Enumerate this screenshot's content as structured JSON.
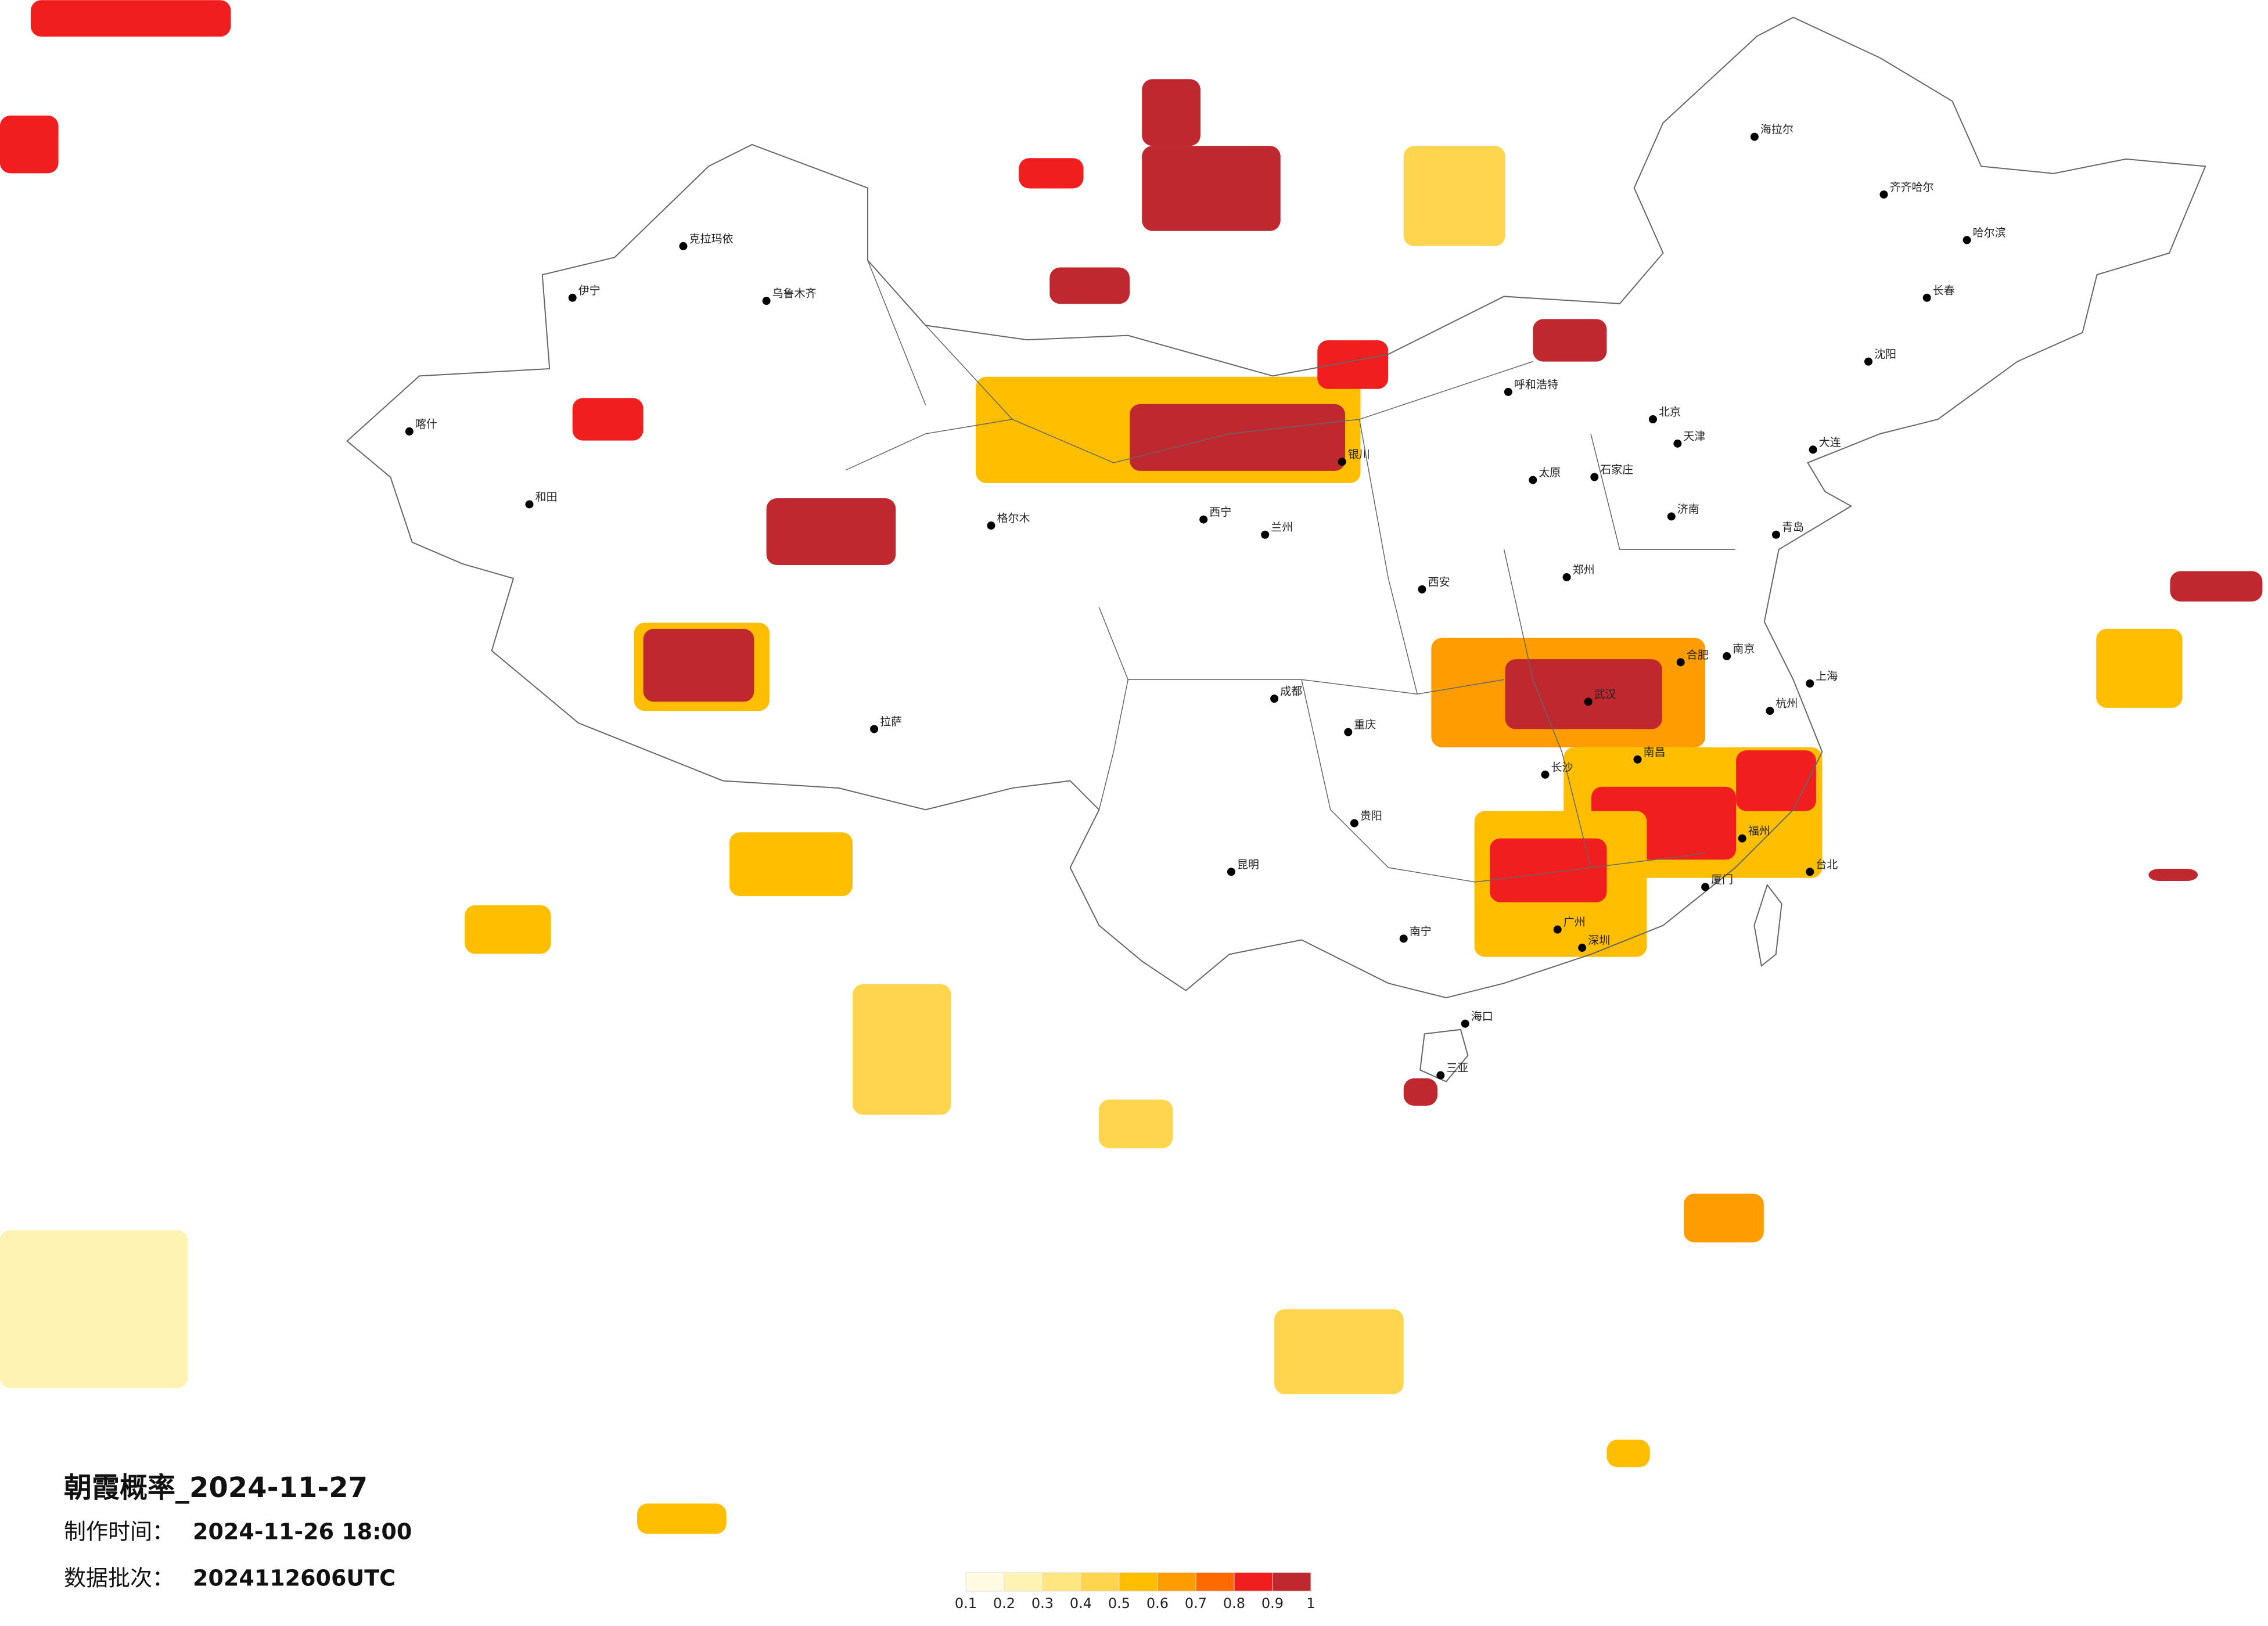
{
  "title": "朝霞概率_2024-11-27",
  "made_label": "制作时间：",
  "made_time": "2024-11-26 18:00",
  "batch_label": "数据批次：",
  "batch": "2024112606UTC",
  "legend": {
    "ticks": [
      0.1,
      0.2,
      0.3,
      0.4,
      0.5,
      0.6,
      0.7,
      0.8,
      0.9,
      1
    ],
    "colors": [
      "#fffbe3",
      "#fff3b3",
      "#ffe680",
      "#ffd54f",
      "#ffbf00",
      "#ff9c00",
      "#ff6a00",
      "#f01e1e",
      "#c0282f"
    ]
  },
  "patches": [
    {
      "lon": [
        94.4,
        106.9
      ],
      "lat": [
        41.3,
        37.8
      ],
      "value": 0.55
    },
    {
      "lon": [
        99.4,
        106.4
      ],
      "lat": [
        40.4,
        38.2
      ],
      "value": 0.95
    },
    {
      "lon": [
        99.8,
        104.3
      ],
      "lat": [
        48.9,
        46.1
      ],
      "value": 0.95
    },
    {
      "lon": [
        99.8,
        101.7
      ],
      "lat": [
        51.1,
        48.9
      ],
      "value": 0.9
    },
    {
      "lon": [
        83.3,
        87.7
      ],
      "lat": [
        33.2,
        30.3
      ],
      "value": 0.55
    },
    {
      "lon": [
        83.6,
        87.2
      ],
      "lat": [
        33.0,
        30.6
      ],
      "value": 0.95
    },
    {
      "lon": [
        87.6,
        91.8
      ],
      "lat": [
        37.3,
        35.1
      ],
      "value": 0.9
    },
    {
      "lon": [
        81.3,
        83.6
      ],
      "lat": [
        40.6,
        39.2
      ],
      "value": 0.8
    },
    {
      "lon": [
        109.2,
        118.1
      ],
      "lat": [
        32.7,
        29.1
      ],
      "value": 0.6
    },
    {
      "lon": [
        111.6,
        116.7
      ],
      "lat": [
        32.0,
        29.7
      ],
      "value": 0.95
    },
    {
      "lon": [
        113.5,
        121.9
      ],
      "lat": [
        29.1,
        24.8
      ],
      "value": 0.55
    },
    {
      "lon": [
        114.4,
        119.1
      ],
      "lat": [
        27.8,
        25.4
      ],
      "value": 0.85
    },
    {
      "lon": [
        110.6,
        116.2
      ],
      "lat": [
        27.0,
        22.2
      ],
      "value": 0.5
    },
    {
      "lon": [
        111.1,
        114.9
      ],
      "lat": [
        26.1,
        24.0
      ],
      "value": 0.85
    },
    {
      "lon": [
        119.1,
        121.7
      ],
      "lat": [
        29.0,
        27.0
      ],
      "value": 0.85
    },
    {
      "lon": [
        112.5,
        114.9
      ],
      "lat": [
        43.2,
        41.8
      ],
      "value": 0.9
    },
    {
      "lon": [
        96.8,
        99.4
      ],
      "lat": [
        44.9,
        43.7
      ],
      "value": 0.9
    },
    {
      "lon": [
        95.8,
        97.9
      ],
      "lat": [
        48.5,
        47.5
      ],
      "value": 0.8
    },
    {
      "lon": [
        105.5,
        107.8
      ],
      "lat": [
        42.5,
        40.9
      ],
      "value": 0.85
    },
    {
      "lon": [
        63.7,
        70.2
      ],
      "lat": [
        53.7,
        52.5
      ],
      "value": 0.8
    },
    {
      "lon": [
        62.7,
        64.6
      ],
      "lat": [
        49.9,
        48.0
      ],
      "value": 0.85
    },
    {
      "lon": [
        130.8,
        133.6
      ],
      "lat": [
        33.0,
        30.4
      ],
      "value": 0.5
    },
    {
      "lon": [
        133.2,
        136.2
      ],
      "lat": [
        34.9,
        33.9
      ],
      "value": 0.9
    },
    {
      "lon": [
        108.3,
        109.4
      ],
      "lat": [
        18.2,
        17.3
      ],
      "value": 0.9
    },
    {
      "lon": [
        86.4,
        90.4
      ],
      "lat": [
        26.3,
        24.2
      ],
      "value": 0.55
    },
    {
      "lon": [
        117.4,
        120.0
      ],
      "lat": [
        14.4,
        12.8
      ],
      "value": 0.6
    },
    {
      "lon": [
        90.4,
        93.6
      ],
      "lat": [
        21.3,
        17.0
      ],
      "value": 0.4
    },
    {
      "lon": [
        108.3,
        111.6
      ],
      "lat": [
        48.9,
        45.6
      ],
      "value": 0.4
    },
    {
      "lon": [
        98.4,
        100.8
      ],
      "lat": [
        17.5,
        15.9
      ],
      "value": 0.45
    },
    {
      "lon": [
        132.5,
        134.1
      ],
      "lat": [
        25.1,
        24.7
      ],
      "value": 0.9
    },
    {
      "lon": [
        62.7,
        68.8
      ],
      "lat": [
        13.2,
        8.0
      ],
      "value": 0.2
    },
    {
      "lon": [
        104.1,
        108.3
      ],
      "lat": [
        10.6,
        7.8
      ],
      "value": 0.4
    },
    {
      "lon": [
        77.8,
        80.6
      ],
      "lat": [
        23.9,
        22.3
      ],
      "value": 0.5
    },
    {
      "lon": [
        114.9,
        116.3
      ],
      "lat": [
        6.3,
        5.4
      ],
      "value": 0.5
    },
    {
      "lon": [
        83.4,
        86.3
      ],
      "lat": [
        4.2,
        3.2
      ],
      "value": 0.5
    }
  ],
  "cities": [
    {
      "name": "北京",
      "lon": 116.4,
      "lat": 39.9
    },
    {
      "name": "天津",
      "lon": 117.2,
      "lat": 39.1
    },
    {
      "name": "上海",
      "lon": 121.5,
      "lat": 31.2
    },
    {
      "name": "重庆",
      "lon": 106.5,
      "lat": 29.6
    },
    {
      "name": "哈尔滨",
      "lon": 126.6,
      "lat": 45.8
    },
    {
      "name": "长春",
      "lon": 125.3,
      "lat": 43.9
    },
    {
      "name": "沈阳",
      "lon": 123.4,
      "lat": 41.8
    },
    {
      "name": "呼和浩特",
      "lon": 111.7,
      "lat": 40.8
    },
    {
      "name": "石家庄",
      "lon": 114.5,
      "lat": 38.0
    },
    {
      "name": "太原",
      "lon": 112.5,
      "lat": 37.9
    },
    {
      "name": "济南",
      "lon": 117.0,
      "lat": 36.7
    },
    {
      "name": "郑州",
      "lon": 113.6,
      "lat": 34.7
    },
    {
      "name": "西安",
      "lon": 108.9,
      "lat": 34.3
    },
    {
      "name": "兰州",
      "lon": 103.8,
      "lat": 36.1
    },
    {
      "name": "西宁",
      "lon": 101.8,
      "lat": 36.6
    },
    {
      "name": "银川",
      "lon": 106.3,
      "lat": 38.5
    },
    {
      "name": "乌鲁木齐",
      "lon": 87.6,
      "lat": 43.8
    },
    {
      "name": "拉萨",
      "lon": 91.1,
      "lat": 29.7
    },
    {
      "name": "成都",
      "lon": 104.1,
      "lat": 30.7
    },
    {
      "name": "贵阳",
      "lon": 106.7,
      "lat": 26.6
    },
    {
      "name": "昆明",
      "lon": 102.7,
      "lat": 25.0
    },
    {
      "name": "南宁",
      "lon": 108.3,
      "lat": 22.8
    },
    {
      "name": "广州",
      "lon": 113.3,
      "lat": 23.1
    },
    {
      "name": "海口",
      "lon": 110.3,
      "lat": 20.0
    },
    {
      "name": "长沙",
      "lon": 112.9,
      "lat": 28.2
    },
    {
      "name": "武汉",
      "lon": 114.3,
      "lat": 30.6
    },
    {
      "name": "南昌",
      "lon": 115.9,
      "lat": 28.7
    },
    {
      "name": "杭州",
      "lon": 120.2,
      "lat": 30.3
    },
    {
      "name": "南京",
      "lon": 118.8,
      "lat": 32.1
    },
    {
      "name": "合肥",
      "lon": 117.3,
      "lat": 31.9
    },
    {
      "name": "福州",
      "lon": 119.3,
      "lat": 26.1
    },
    {
      "name": "台北",
      "lon": 121.5,
      "lat": 25.0
    },
    {
      "name": "喀什",
      "lon": 76.0,
      "lat": 39.5
    },
    {
      "name": "和田",
      "lon": 79.9,
      "lat": 37.1
    },
    {
      "name": "克拉玛依",
      "lon": 84.9,
      "lat": 45.6
    },
    {
      "name": "伊宁",
      "lon": 81.3,
      "lat": 43.9
    },
    {
      "name": "格尔木",
      "lon": 94.9,
      "lat": 36.4
    },
    {
      "name": "海拉尔",
      "lon": 119.7,
      "lat": 49.2
    },
    {
      "name": "齐齐哈尔",
      "lon": 123.9,
      "lat": 47.3
    },
    {
      "name": "大连",
      "lon": 121.6,
      "lat": 38.9
    },
    {
      "name": "青岛",
      "lon": 120.4,
      "lat": 36.1
    },
    {
      "name": "厦门",
      "lon": 118.1,
      "lat": 24.5
    },
    {
      "name": "深圳",
      "lon": 114.1,
      "lat": 22.5
    },
    {
      "name": "三亚",
      "lon": 109.5,
      "lat": 18.3
    }
  ]
}
